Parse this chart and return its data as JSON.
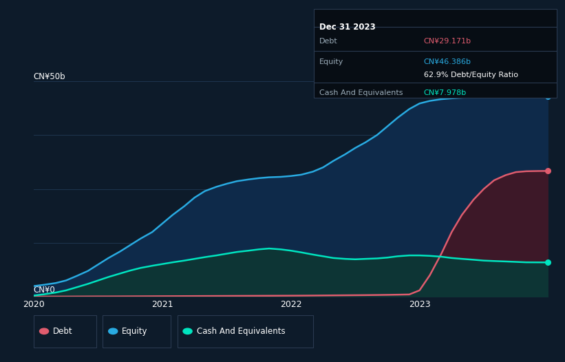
{
  "background_color": "#0d1b2a",
  "plot_bg_color": "#0d1b2a",
  "ylabel_top": "CN¥50b",
  "ylabel_bottom": "CN¥0",
  "x_labels": [
    "2020",
    "2021",
    "2022",
    "2023"
  ],
  "tooltip": {
    "title": "Dec 31 2023",
    "debt_label": "Debt",
    "debt_value": "CN¥29.171b",
    "equity_label": "Equity",
    "equity_value": "CN¥46.386b",
    "ratio_value": "62.9% Debt/Equity Ratio",
    "cash_label": "Cash And Equivalents",
    "cash_value": "CN¥7.978b"
  },
  "debt_color": "#e05c6e",
  "equity_color": "#29abe2",
  "cash_color": "#00e5c0",
  "legend_labels": [
    "Debt",
    "Equity",
    "Cash And Equivalents"
  ],
  "x_ticks": [
    0,
    1,
    2,
    3
  ],
  "x_data": [
    0.0,
    0.08,
    0.17,
    0.25,
    0.33,
    0.42,
    0.5,
    0.58,
    0.67,
    0.75,
    0.83,
    0.92,
    1.0,
    1.08,
    1.17,
    1.25,
    1.33,
    1.42,
    1.5,
    1.58,
    1.67,
    1.75,
    1.83,
    1.92,
    2.0,
    2.08,
    2.17,
    2.25,
    2.33,
    2.42,
    2.5,
    2.58,
    2.67,
    2.75,
    2.83,
    2.92,
    3.0,
    3.08,
    3.17,
    3.25,
    3.33,
    3.42,
    3.5,
    3.58,
    3.67,
    3.75,
    3.83,
    3.92,
    4.0
  ],
  "equity_data": [
    2.5,
    2.8,
    3.2,
    3.8,
    4.8,
    6.0,
    7.5,
    9.0,
    10.5,
    12.0,
    13.5,
    15.0,
    17.0,
    19.0,
    21.0,
    23.0,
    24.5,
    25.5,
    26.2,
    26.8,
    27.2,
    27.5,
    27.7,
    27.8,
    28.0,
    28.3,
    29.0,
    30.0,
    31.5,
    33.0,
    34.5,
    35.8,
    37.5,
    39.5,
    41.5,
    43.5,
    44.8,
    45.4,
    45.8,
    46.0,
    46.15,
    46.25,
    46.32,
    46.35,
    46.37,
    46.38,
    46.385,
    46.386,
    46.386
  ],
  "debt_data": [
    0.05,
    0.06,
    0.07,
    0.07,
    0.08,
    0.09,
    0.1,
    0.1,
    0.11,
    0.12,
    0.13,
    0.14,
    0.15,
    0.16,
    0.17,
    0.18,
    0.19,
    0.2,
    0.21,
    0.22,
    0.23,
    0.24,
    0.25,
    0.26,
    0.27,
    0.28,
    0.3,
    0.32,
    0.34,
    0.36,
    0.38,
    0.4,
    0.43,
    0.46,
    0.5,
    0.55,
    1.5,
    5.0,
    10.0,
    15.0,
    19.0,
    22.5,
    25.0,
    27.0,
    28.2,
    28.9,
    29.1,
    29.15,
    29.171
  ],
  "cash_data": [
    0.3,
    0.6,
    1.0,
    1.5,
    2.2,
    3.0,
    3.8,
    4.6,
    5.4,
    6.1,
    6.7,
    7.2,
    7.6,
    8.0,
    8.4,
    8.8,
    9.2,
    9.6,
    10.0,
    10.4,
    10.7,
    11.0,
    11.2,
    11.0,
    10.7,
    10.3,
    9.8,
    9.4,
    9.0,
    8.8,
    8.7,
    8.8,
    8.9,
    9.1,
    9.4,
    9.6,
    9.6,
    9.5,
    9.3,
    9.0,
    8.8,
    8.6,
    8.4,
    8.3,
    8.2,
    8.1,
    8.0,
    7.99,
    7.978
  ],
  "ylim": [
    0,
    52
  ],
  "figsize": [
    8.21,
    5.26
  ],
  "dpi": 100
}
